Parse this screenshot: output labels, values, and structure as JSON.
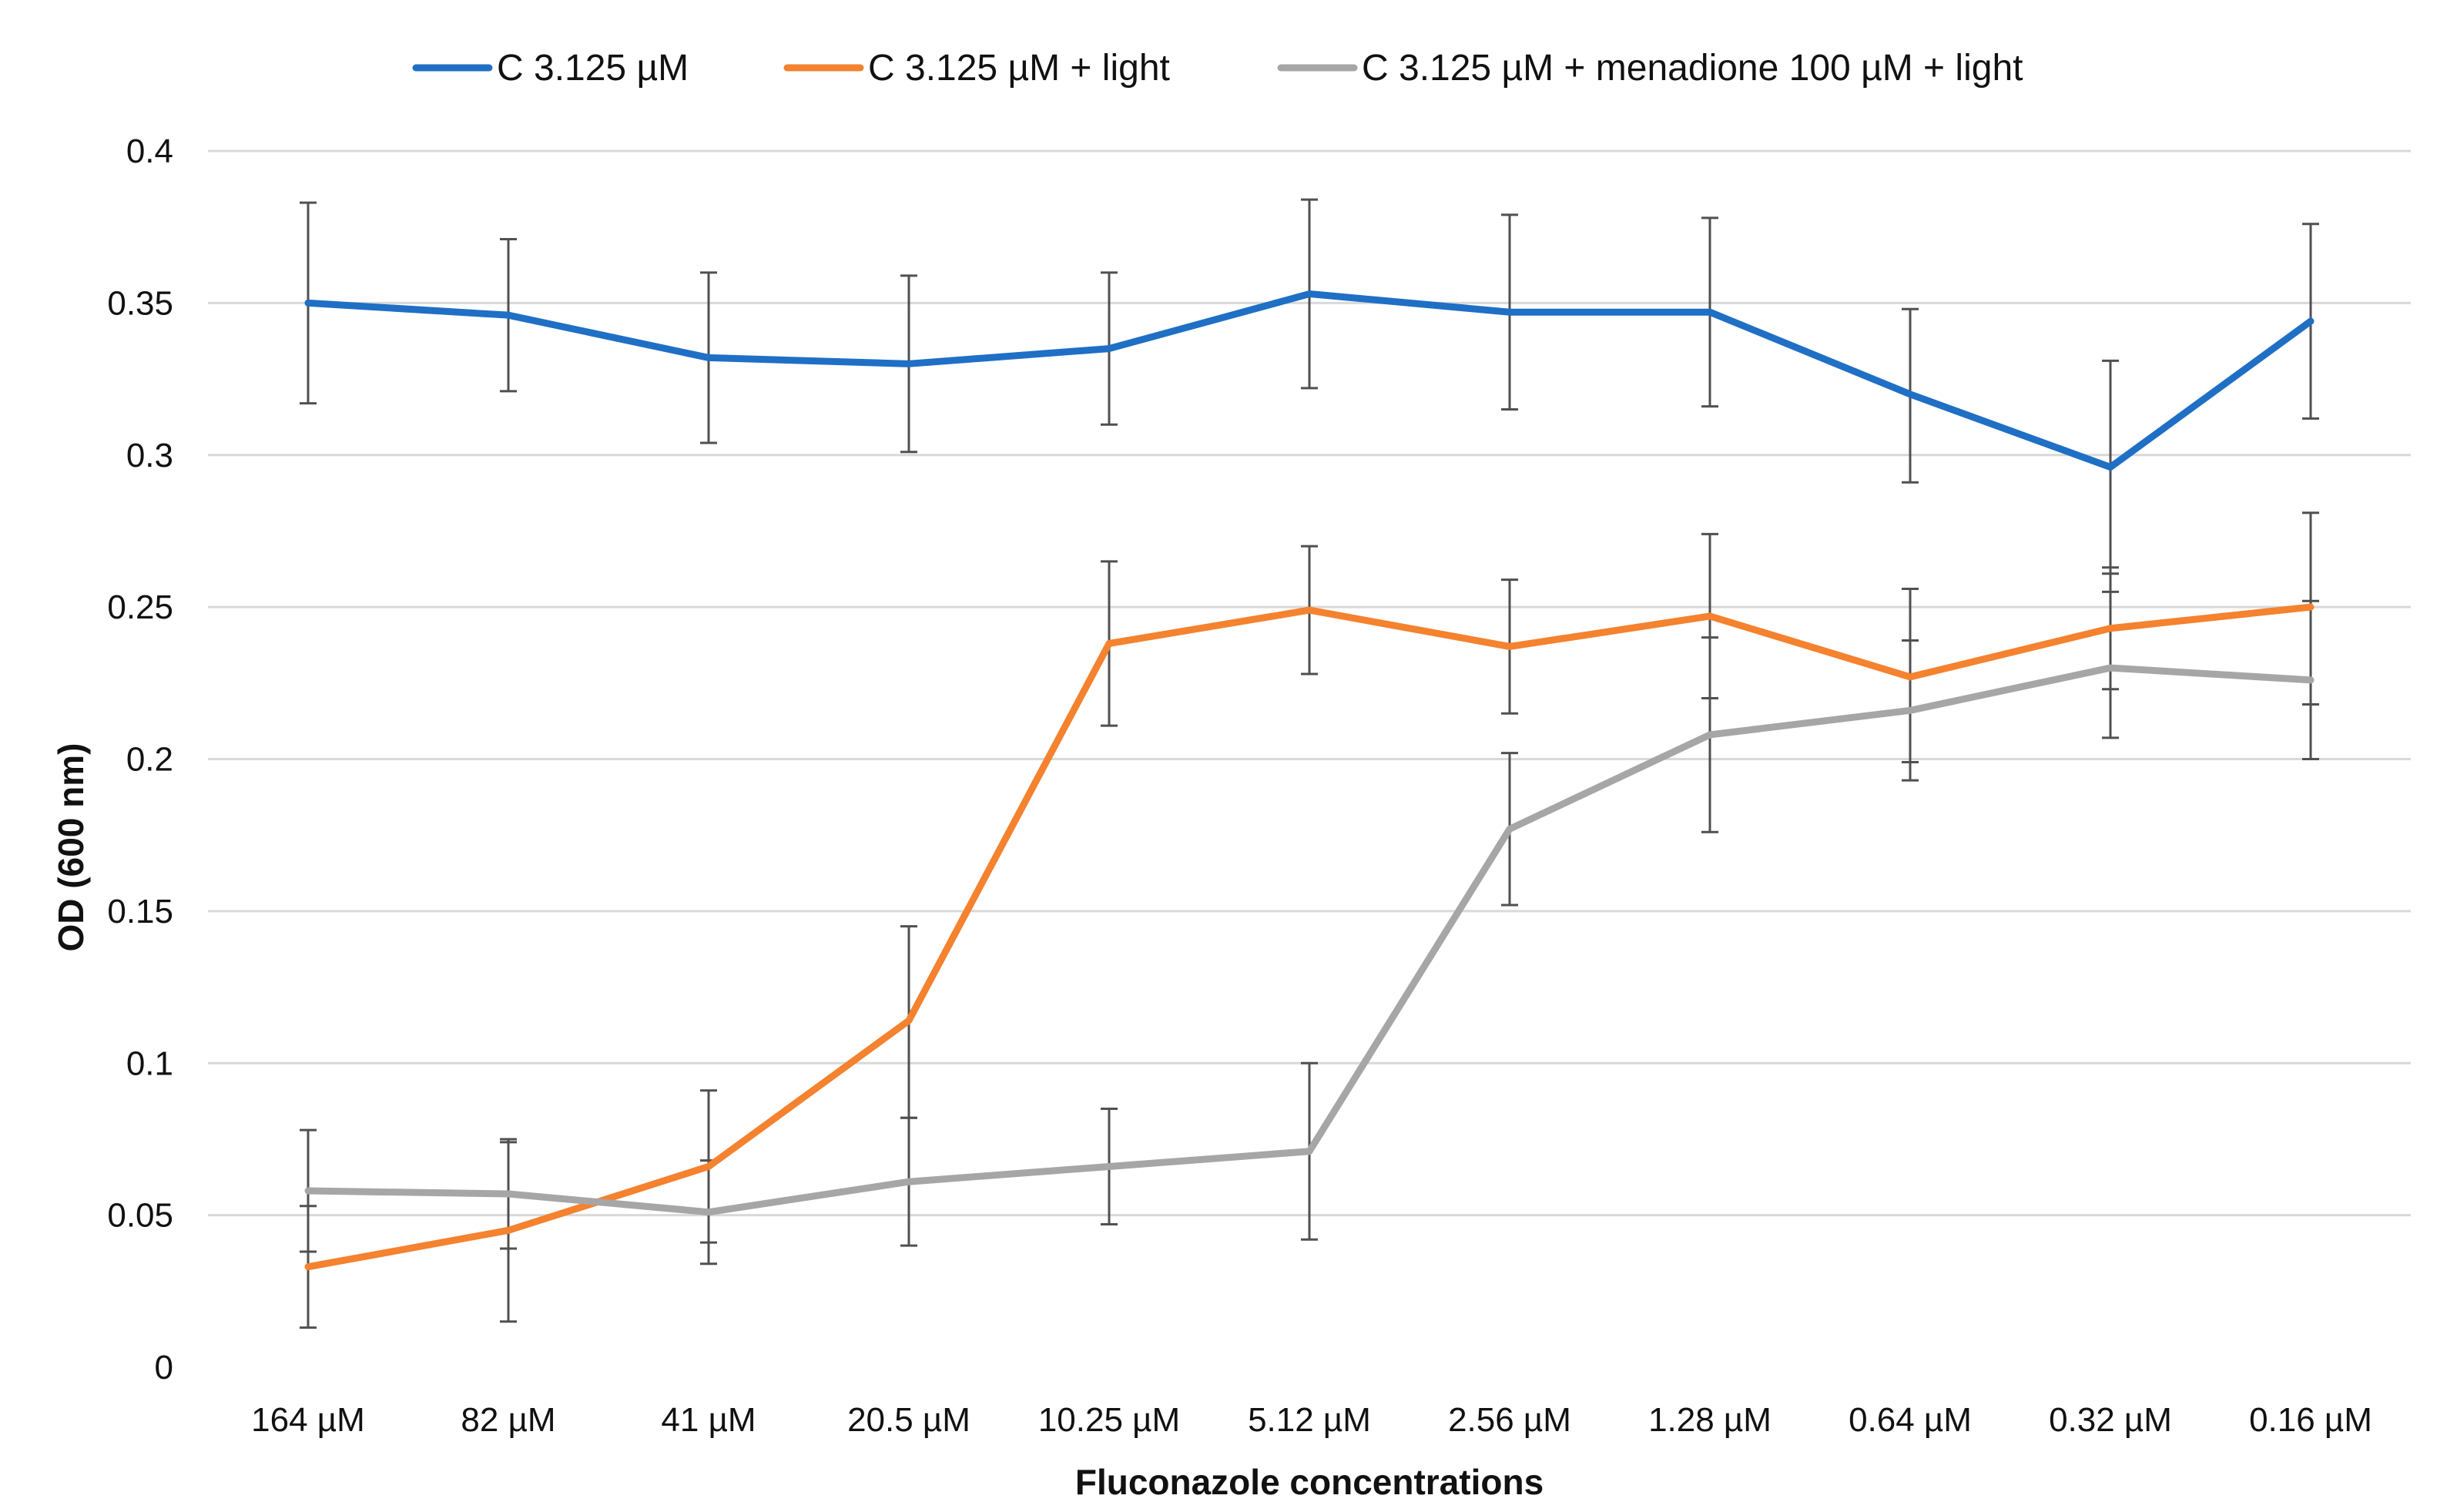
{
  "chart_data": {
    "type": "line",
    "title": "",
    "xlabel": "Fluconazole concentrations",
    "ylabel": "OD (600 nm)",
    "ylim": [
      0,
      0.4
    ],
    "yticks": [
      0,
      0.05,
      0.1,
      0.15,
      0.2,
      0.25,
      0.3,
      0.35,
      0.4
    ],
    "ytick_labels": [
      "0",
      "0.05",
      "0.1",
      "0.15",
      "0.2",
      "0.25",
      "0.3",
      "0.35",
      "0.4"
    ],
    "grid": true,
    "legend_position": "top",
    "categories": [
      "164 µM",
      "82 µM",
      "41 µM",
      "20.5 µM",
      "10.25 µM",
      "5.12 µM",
      "2.56 µM",
      "1.28 µM",
      "0.64 µM",
      "0.32 µM",
      "0.16 µM"
    ],
    "series": [
      {
        "name": "C 3.125 µM",
        "color": "#1f6fc5",
        "values": [
          0.35,
          0.346,
          0.332,
          0.33,
          0.335,
          0.353,
          0.347,
          0.347,
          0.32,
          0.296,
          0.344
        ],
        "error_low": [
          0.317,
          0.321,
          0.304,
          0.301,
          0.31,
          0.322,
          0.315,
          0.316,
          0.291,
          0.261,
          0.312
        ],
        "error_high": [
          0.383,
          0.371,
          0.36,
          0.359,
          0.36,
          0.384,
          0.379,
          0.378,
          0.348,
          0.331,
          0.376
        ]
      },
      {
        "name": "C 3.125 µM + light",
        "color": "#f4822f",
        "values": [
          0.033,
          0.045,
          0.066,
          0.114,
          0.238,
          0.249,
          0.237,
          0.247,
          0.227,
          0.243,
          0.25
        ],
        "error_low": [
          0.013,
          0.015,
          0.041,
          0.082,
          0.211,
          0.228,
          0.215,
          0.22,
          0.199,
          0.223,
          0.218
        ],
        "error_high": [
          0.053,
          0.075,
          0.091,
          0.145,
          0.265,
          0.27,
          0.259,
          0.274,
          0.256,
          0.263,
          0.281
        ]
      },
      {
        "name": "C 3.125 µM + menadione 100 µM + light",
        "color": "#a6a6a6",
        "values": [
          0.058,
          0.057,
          0.051,
          0.061,
          0.066,
          0.071,
          0.177,
          0.208,
          0.216,
          0.23,
          0.226
        ],
        "error_low": [
          0.038,
          0.039,
          0.034,
          0.04,
          0.047,
          0.042,
          0.152,
          0.176,
          0.193,
          0.207,
          0.2
        ],
        "error_high": [
          0.078,
          0.074,
          0.068,
          0.082,
          0.085,
          0.1,
          0.202,
          0.24,
          0.239,
          0.255,
          0.252
        ]
      }
    ]
  }
}
